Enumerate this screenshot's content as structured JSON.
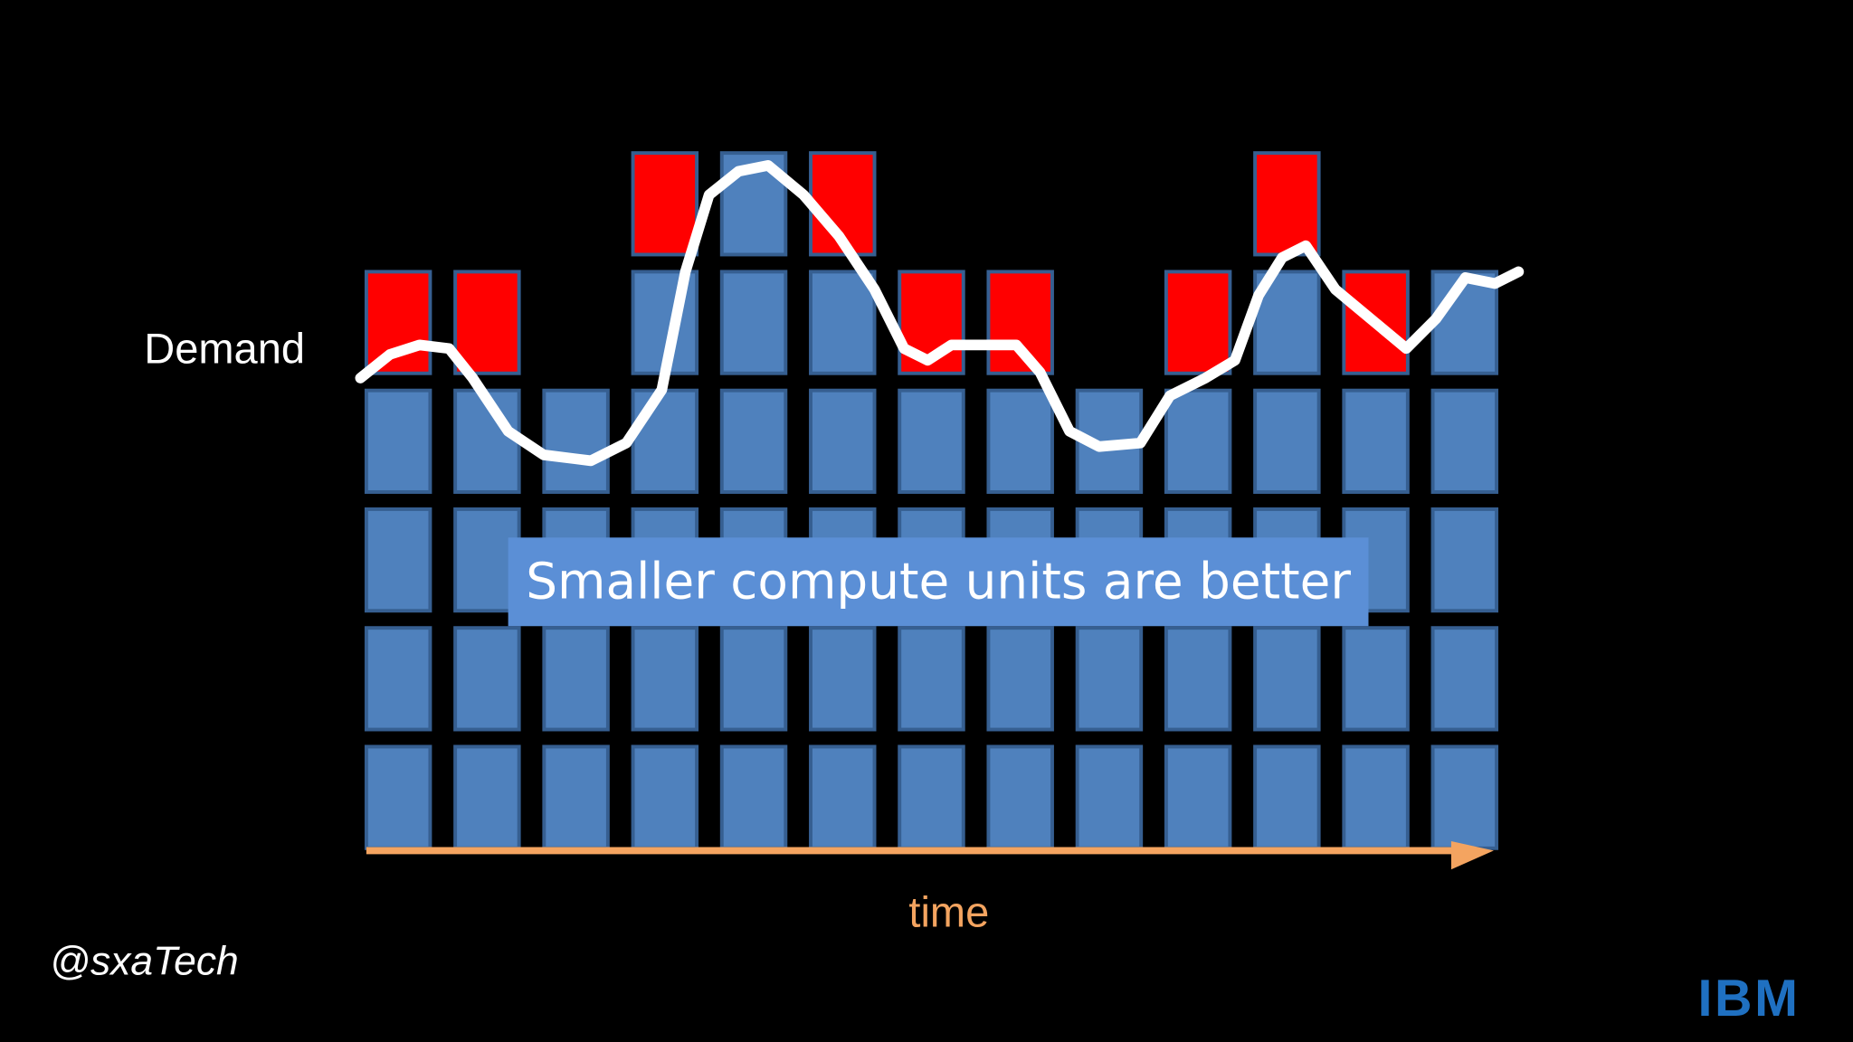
{
  "label": "Demand",
  "banner": "Smaller compute units are better",
  "axis_label": "time",
  "handle": "@sxaTech",
  "logo": "IBM",
  "columns": [
    {
      "blue": 4,
      "red": 1
    },
    {
      "blue": 4,
      "red": 1
    },
    {
      "blue": 4,
      "red": 0
    },
    {
      "blue": 5,
      "red": 1
    },
    {
      "blue": 6,
      "red": 0
    },
    {
      "blue": 5,
      "red": 1
    },
    {
      "blue": 4,
      "red": 1
    },
    {
      "blue": 4,
      "red": 1
    },
    {
      "blue": 4,
      "red": 0
    },
    {
      "blue": 4,
      "red": 1
    },
    {
      "blue": 5,
      "red": 1
    },
    {
      "blue": 4,
      "red": 1
    },
    {
      "blue": 5,
      "red": 0
    }
  ]
}
